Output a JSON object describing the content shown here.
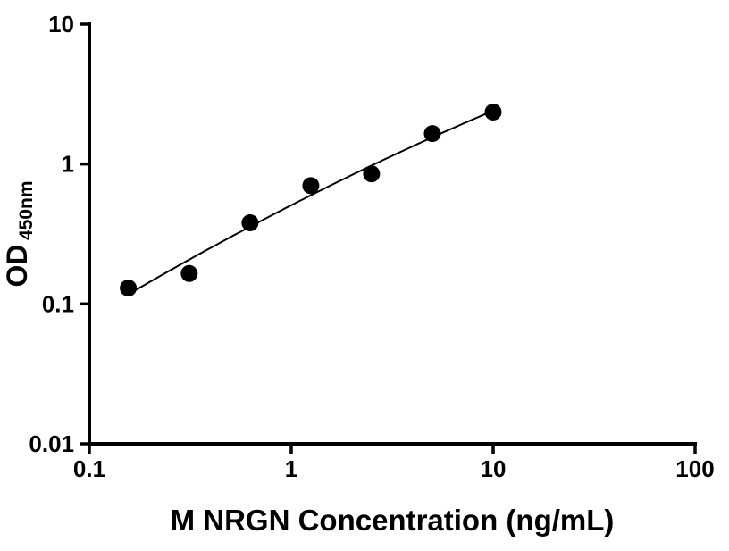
{
  "chart_data": {
    "type": "scatter",
    "title": "",
    "xlabel": "M NRGN Concentration (ng/mL)",
    "ylabel_main": "OD",
    "ylabel_sub": "450nm",
    "x_scale": "log",
    "y_scale": "log",
    "xlim": [
      0.1,
      100
    ],
    "ylim": [
      0.01,
      10
    ],
    "x_ticks": [
      {
        "value": 0.1,
        "label": "0.1"
      },
      {
        "value": 1,
        "label": "1"
      },
      {
        "value": 10,
        "label": "10"
      },
      {
        "value": 100,
        "label": "100"
      }
    ],
    "y_ticks": [
      {
        "value": 0.01,
        "label": "0.01"
      },
      {
        "value": 0.1,
        "label": "0.1"
      },
      {
        "value": 1,
        "label": "1"
      },
      {
        "value": 10,
        "label": "10"
      }
    ],
    "points": [
      {
        "x": 0.156,
        "y": 0.13
      },
      {
        "x": 0.3125,
        "y": 0.165
      },
      {
        "x": 0.625,
        "y": 0.38
      },
      {
        "x": 1.25,
        "y": 0.7
      },
      {
        "x": 2.5,
        "y": 0.85
      },
      {
        "x": 5,
        "y": 1.65
      },
      {
        "x": 10,
        "y": 2.35
      }
    ],
    "curve_fit": "smooth quadratic fit in log-log space through standards",
    "legend": "none",
    "grid": "off",
    "marker_color": "#000000",
    "line_color": "#000000",
    "axis_color": "#000000",
    "background": "#ffffff"
  }
}
